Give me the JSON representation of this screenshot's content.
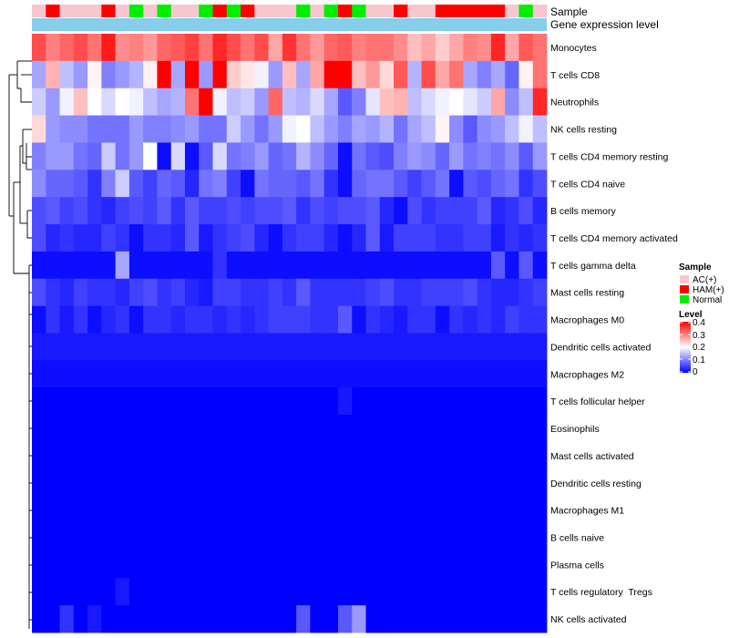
{
  "chart_data": {
    "type": "heatmap",
    "title": "",
    "annotation_tracks": [
      "Sample",
      "Gene expression level"
    ],
    "sample_groups": [
      "AC(+)",
      "HAM(+)",
      "AC(+)",
      "AC(+)",
      "AC(+)",
      "HAM(+)",
      "AC(+)",
      "Normal",
      "AC(+)",
      "Normal",
      "AC(+)",
      "AC(+)",
      "Normal",
      "HAM(+)",
      "Normal",
      "HAM(+)",
      "AC(+)",
      "AC(+)",
      "AC(+)",
      "Normal",
      "AC(+)",
      "Normal",
      "HAM(+)",
      "Normal",
      "AC(+)",
      "AC(+)",
      "HAM(+)",
      "AC(+)",
      "AC(+)",
      "HAM(+)",
      "HAM(+)",
      "HAM(+)",
      "HAM(+)",
      "HAM(+)",
      "AC(+)",
      "Normal",
      "AC(+)"
    ],
    "group_colors": {
      "AC(+)": "#f8c6cf",
      "HAM(+)": "#ff0000",
      "Normal": "#00ee00"
    },
    "expression_track_color": "#87ceeb",
    "rows": [
      "Monocytes",
      "T cells CD8",
      "Neutrophils",
      "NK cells resting",
      "T cells CD4 memory resting",
      "T cells CD4 naive",
      "B cells memory",
      "T cells CD4 memory activated",
      "T cells gamma delta",
      "Mast cells resting",
      "Macrophages M0",
      "Dendritic cells activated",
      "Macrophages M2",
      "T cells follicular helper",
      "Eosinophils",
      "Mast cells activated",
      "Dendritic cells resting",
      "Macrophages M1",
      "B cells naive",
      "Plasma cells",
      "T cells regulatory  Tregs",
      "NK cells activated"
    ],
    "values": [
      [
        0.34,
        0.3,
        0.32,
        0.34,
        0.31,
        0.38,
        0.29,
        0.3,
        0.28,
        0.32,
        0.33,
        0.35,
        0.31,
        0.37,
        0.34,
        0.31,
        0.34,
        0.27,
        0.36,
        0.31,
        0.28,
        0.32,
        0.33,
        0.3,
        0.31,
        0.31,
        0.29,
        0.25,
        0.27,
        0.24,
        0.27,
        0.3,
        0.29,
        0.37,
        0.27,
        0.33,
        0.31
      ],
      [
        0.13,
        0.26,
        0.15,
        0.12,
        0.21,
        0.1,
        0.12,
        0.14,
        0.21,
        0.4,
        0.13,
        0.4,
        0.12,
        0.4,
        0.24,
        0.22,
        0.19,
        0.12,
        0.25,
        0.13,
        0.27,
        0.4,
        0.4,
        0.25,
        0.28,
        0.23,
        0.33,
        0.14,
        0.34,
        0.27,
        0.31,
        0.13,
        0.1,
        0.13,
        0.08,
        0.21,
        0.31
      ],
      [
        0.16,
        0.12,
        0.19,
        0.25,
        0.2,
        0.17,
        0.2,
        0.19,
        0.15,
        0.13,
        0.14,
        0.31,
        0.4,
        0.19,
        0.15,
        0.16,
        0.12,
        0.32,
        0.15,
        0.14,
        0.17,
        0.13,
        0.07,
        0.1,
        0.18,
        0.25,
        0.26,
        0.15,
        0.17,
        0.19,
        0.2,
        0.18,
        0.16,
        0.27,
        0.11,
        0.15,
        0.37
      ],
      [
        0.23,
        0.12,
        0.11,
        0.11,
        0.09,
        0.09,
        0.09,
        0.12,
        0.1,
        0.1,
        0.11,
        0.12,
        0.09,
        0.09,
        0.16,
        0.12,
        0.09,
        0.12,
        0.19,
        0.2,
        0.15,
        0.12,
        0.1,
        0.13,
        0.12,
        0.14,
        0.09,
        0.13,
        0.15,
        0.21,
        0.11,
        0.07,
        0.11,
        0.12,
        0.15,
        0.19,
        0.15
      ],
      [
        0.1,
        0.12,
        0.12,
        0.09,
        0.08,
        0.16,
        0.09,
        0.12,
        0.2,
        0.01,
        0.17,
        0.01,
        0.07,
        0.17,
        0.09,
        0.1,
        0.12,
        0.08,
        0.09,
        0.14,
        0.11,
        0.08,
        0.01,
        0.09,
        0.07,
        0.06,
        0.1,
        0.12,
        0.11,
        0.08,
        0.12,
        0.09,
        0.1,
        0.09,
        0.11,
        0.07,
        0.12
      ],
      [
        0.11,
        0.08,
        0.08,
        0.07,
        0.04,
        0.1,
        0.16,
        0.07,
        0.05,
        0.08,
        0.07,
        0.03,
        0.09,
        0.1,
        0.05,
        0.01,
        0.09,
        0.08,
        0.08,
        0.07,
        0.09,
        0.04,
        0.01,
        0.08,
        0.09,
        0.09,
        0.07,
        0.05,
        0.07,
        0.09,
        0.01,
        0.07,
        0.06,
        0.08,
        0.09,
        0.04,
        0.06
      ],
      [
        0.06,
        0.07,
        0.05,
        0.06,
        0.04,
        0.03,
        0.05,
        0.06,
        0.05,
        0.07,
        0.04,
        0.07,
        0.05,
        0.05,
        0.06,
        0.05,
        0.06,
        0.06,
        0.07,
        0.04,
        0.06,
        0.05,
        0.06,
        0.06,
        0.07,
        0.03,
        0.01,
        0.06,
        0.04,
        0.05,
        0.05,
        0.05,
        0.07,
        0.03,
        0.04,
        0.06,
        0.03
      ],
      [
        0.06,
        0.03,
        0.04,
        0.03,
        0.03,
        0.05,
        0.04,
        0.01,
        0.04,
        0.04,
        0.03,
        0.07,
        0.02,
        0.04,
        0.05,
        0.06,
        0.03,
        0.01,
        0.04,
        0.05,
        0.05,
        0.03,
        0.01,
        0.03,
        0.07,
        0.02,
        0.05,
        0.05,
        0.05,
        0.04,
        0.04,
        0.05,
        0.05,
        0.02,
        0.04,
        0.03,
        0.04
      ],
      [
        0.01,
        0.01,
        0.01,
        0.01,
        0.01,
        0.01,
        0.13,
        0.01,
        0.01,
        0.01,
        0.01,
        0.01,
        0.01,
        0.04,
        0.01,
        0.01,
        0.01,
        0.01,
        0.01,
        0.01,
        0.01,
        0.01,
        0.01,
        0.01,
        0.01,
        0.01,
        0.01,
        0.01,
        0.01,
        0.01,
        0.01,
        0.01,
        0.01,
        0.07,
        0.01,
        0.07,
        0.01
      ],
      [
        0.06,
        0.04,
        0.03,
        0.05,
        0.04,
        0.04,
        0.03,
        0.05,
        0.06,
        0.04,
        0.05,
        0.03,
        0.02,
        0.05,
        0.05,
        0.04,
        0.04,
        0.05,
        0.04,
        0.07,
        0.04,
        0.04,
        0.04,
        0.04,
        0.05,
        0.06,
        0.04,
        0.04,
        0.05,
        0.05,
        0.05,
        0.06,
        0.04,
        0.03,
        0.03,
        0.04,
        0.05
      ],
      [
        0.01,
        0.04,
        0.02,
        0.04,
        0.01,
        0.03,
        0.04,
        0.01,
        0.04,
        0.04,
        0.03,
        0.04,
        0.04,
        0.03,
        0.04,
        0.03,
        0.04,
        0.05,
        0.05,
        0.05,
        0.04,
        0.04,
        0.07,
        0.01,
        0.04,
        0.03,
        0.02,
        0.04,
        0.04,
        0.01,
        0.04,
        0.03,
        0.04,
        0.03,
        0.05,
        0.04,
        0.04
      ],
      [
        0.02,
        0.02,
        0.02,
        0.02,
        0.02,
        0.02,
        0.02,
        0.02,
        0.02,
        0.02,
        0.02,
        0.02,
        0.02,
        0.02,
        0.02,
        0.02,
        0.02,
        0.02,
        0.02,
        0.02,
        0.02,
        0.02,
        0.02,
        0.02,
        0.02,
        0.02,
        0.02,
        0.02,
        0.02,
        0.02,
        0.02,
        0.02,
        0.02,
        0.02,
        0.02,
        0.02,
        0.02
      ],
      [
        0.01,
        0.01,
        0.01,
        0.01,
        0.01,
        0.01,
        0.01,
        0.01,
        0.01,
        0.01,
        0.01,
        0.01,
        0.01,
        0.01,
        0.01,
        0.01,
        0.01,
        0.01,
        0.01,
        0.01,
        0.01,
        0.01,
        0.01,
        0.01,
        0.01,
        0.01,
        0.01,
        0.01,
        0.01,
        0.01,
        0.01,
        0.01,
        0.01,
        0.01,
        0.01,
        0.01,
        0.01
      ],
      [
        0.0,
        0.0,
        0.0,
        0.0,
        0.0,
        0.0,
        0.0,
        0.0,
        0.0,
        0.0,
        0.0,
        0.0,
        0.0,
        0.0,
        0.0,
        0.0,
        0.0,
        0.0,
        0.0,
        0.0,
        0.0,
        0.0,
        0.02,
        0.0,
        0.0,
        0.0,
        0.0,
        0.0,
        0.0,
        0.0,
        0.0,
        0.0,
        0.0,
        0.0,
        0.0,
        0.0,
        0.0
      ],
      [
        0.0,
        0.0,
        0.0,
        0.0,
        0.0,
        0.0,
        0.0,
        0.0,
        0.0,
        0.0,
        0.0,
        0.0,
        0.0,
        0.0,
        0.0,
        0.0,
        0.0,
        0.0,
        0.0,
        0.0,
        0.0,
        0.0,
        0.0,
        0.0,
        0.0,
        0.0,
        0.0,
        0.0,
        0.0,
        0.0,
        0.0,
        0.0,
        0.0,
        0.0,
        0.0,
        0.0,
        0.0
      ],
      [
        0.0,
        0.0,
        0.0,
        0.0,
        0.0,
        0.0,
        0.0,
        0.0,
        0.0,
        0.0,
        0.0,
        0.0,
        0.0,
        0.0,
        0.0,
        0.0,
        0.0,
        0.0,
        0.0,
        0.0,
        0.0,
        0.0,
        0.0,
        0.0,
        0.0,
        0.0,
        0.0,
        0.0,
        0.0,
        0.0,
        0.0,
        0.0,
        0.0,
        0.0,
        0.0,
        0.0,
        0.0
      ],
      [
        0.0,
        0.0,
        0.0,
        0.0,
        0.0,
        0.0,
        0.0,
        0.0,
        0.0,
        0.0,
        0.0,
        0.0,
        0.0,
        0.0,
        0.0,
        0.0,
        0.0,
        0.0,
        0.0,
        0.0,
        0.0,
        0.0,
        0.0,
        0.0,
        0.0,
        0.0,
        0.0,
        0.0,
        0.0,
        0.0,
        0.0,
        0.0,
        0.0,
        0.0,
        0.0,
        0.0,
        0.0
      ],
      [
        0.0,
        0.0,
        0.0,
        0.0,
        0.0,
        0.0,
        0.0,
        0.0,
        0.0,
        0.0,
        0.0,
        0.0,
        0.0,
        0.0,
        0.0,
        0.0,
        0.0,
        0.0,
        0.0,
        0.0,
        0.0,
        0.0,
        0.0,
        0.0,
        0.0,
        0.0,
        0.0,
        0.0,
        0.0,
        0.0,
        0.0,
        0.0,
        0.0,
        0.0,
        0.0,
        0.0,
        0.0
      ],
      [
        0.0,
        0.0,
        0.0,
        0.0,
        0.0,
        0.0,
        0.0,
        0.0,
        0.0,
        0.0,
        0.0,
        0.0,
        0.0,
        0.0,
        0.0,
        0.0,
        0.0,
        0.0,
        0.0,
        0.0,
        0.0,
        0.0,
        0.0,
        0.0,
        0.0,
        0.0,
        0.0,
        0.0,
        0.0,
        0.0,
        0.0,
        0.0,
        0.0,
        0.0,
        0.0,
        0.0,
        0.0
      ],
      [
        0.0,
        0.0,
        0.0,
        0.0,
        0.0,
        0.0,
        0.0,
        0.0,
        0.0,
        0.0,
        0.0,
        0.0,
        0.0,
        0.0,
        0.0,
        0.0,
        0.0,
        0.0,
        0.0,
        0.0,
        0.0,
        0.0,
        0.0,
        0.0,
        0.0,
        0.0,
        0.0,
        0.0,
        0.0,
        0.0,
        0.0,
        0.0,
        0.0,
        0.0,
        0.0,
        0.0,
        0.0
      ],
      [
        0.0,
        0.0,
        0.0,
        0.0,
        0.0,
        0.0,
        0.02,
        0.0,
        0.0,
        0.0,
        0.0,
        0.0,
        0.0,
        0.0,
        0.0,
        0.0,
        0.0,
        0.0,
        0.0,
        0.0,
        0.0,
        0.0,
        0.0,
        0.0,
        0.0,
        0.0,
        0.0,
        0.0,
        0.0,
        0.0,
        0.0,
        0.0,
        0.0,
        0.0,
        0.0,
        0.0,
        0.0
      ],
      [
        0.0,
        0.0,
        0.04,
        0.0,
        0.02,
        0.0,
        0.0,
        0.0,
        0.0,
        0.0,
        0.0,
        0.0,
        0.0,
        0.0,
        0.0,
        0.0,
        0.0,
        0.0,
        0.0,
        0.07,
        0.0,
        0.0,
        0.07,
        0.12,
        0.0,
        0.0,
        0.0,
        0.0,
        0.0,
        0.0,
        0.0,
        0.0,
        0.0,
        0.0,
        0.0,
        0.0,
        0.0
      ]
    ],
    "color_scale": {
      "min": 0,
      "mid": 0.2,
      "max": 0.4,
      "low_color": "#0000ff",
      "mid_color": "#ffffff",
      "high_color": "#ff0000"
    },
    "legend": {
      "sample_title": "Sample",
      "sample_entries": [
        "AC(+)",
        "HAM(+)",
        "Normal"
      ],
      "level_title": "Level",
      "level_ticks": [
        "0.4",
        "0.3",
        "0.2",
        "0.1",
        "0"
      ]
    },
    "legend_position": "right",
    "dendrogram": "left rows"
  }
}
